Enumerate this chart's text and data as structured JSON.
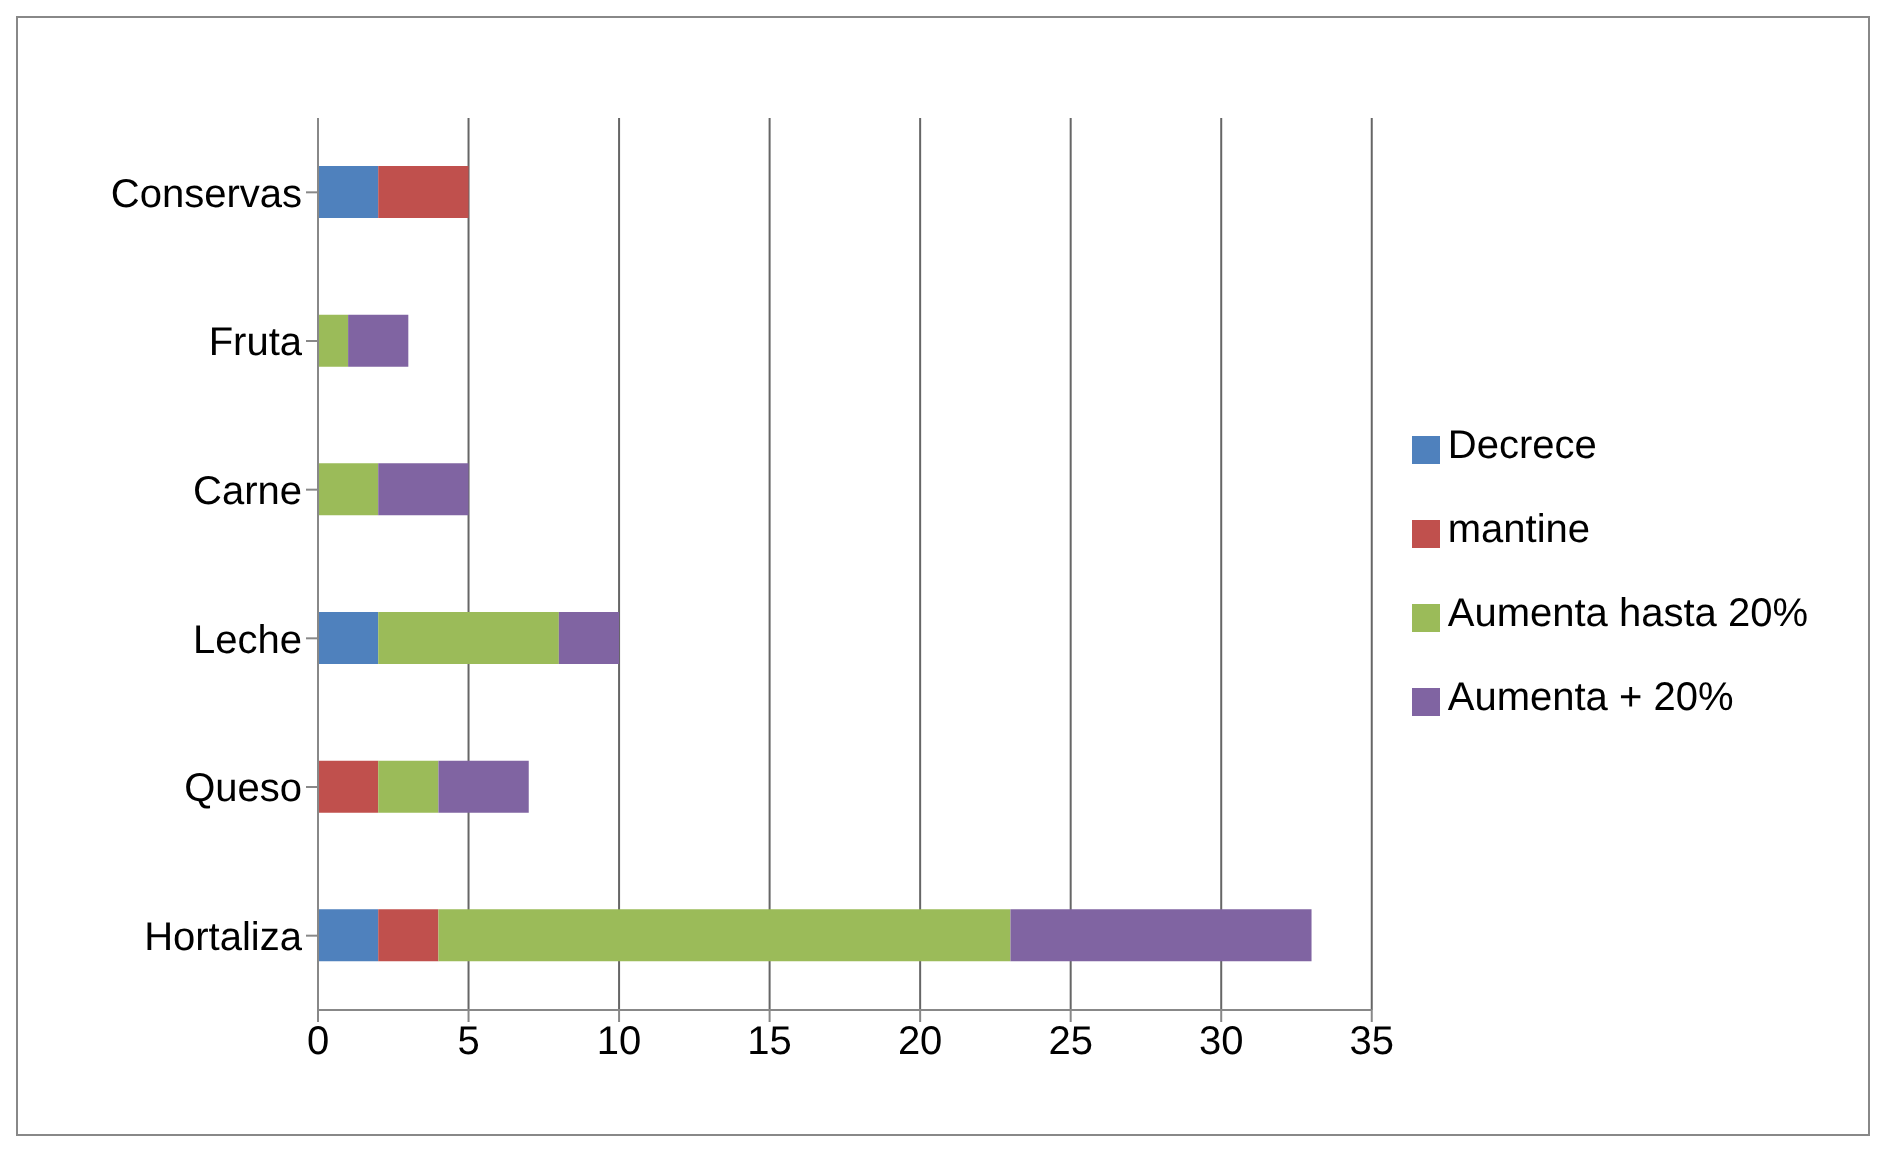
{
  "chart_data": {
    "type": "bar",
    "orientation": "horizontal",
    "stacked": true,
    "categories": [
      "Conservas",
      "Fruta",
      "Carne",
      "Leche",
      "Queso",
      "Hortaliza"
    ],
    "series": [
      {
        "name": "Decrece",
        "color": "#4f81bd",
        "values": [
          2,
          0,
          0,
          2,
          0,
          2
        ]
      },
      {
        "name": "mantine",
        "color": "#c0504d",
        "values": [
          3,
          0,
          0,
          0,
          2,
          2
        ]
      },
      {
        "name": "Aumenta hasta 20%",
        "color": "#9bbb59",
        "values": [
          0,
          1,
          2,
          6,
          2,
          19
        ]
      },
      {
        "name": "Aumenta + 20%",
        "color": "#8064a2",
        "values": [
          0,
          2,
          3,
          2,
          3,
          10
        ]
      }
    ],
    "xlim": [
      0,
      35
    ],
    "xticks": [
      0,
      5,
      10,
      15,
      20,
      25,
      30,
      35
    ],
    "grid": "x",
    "legend": "right"
  }
}
